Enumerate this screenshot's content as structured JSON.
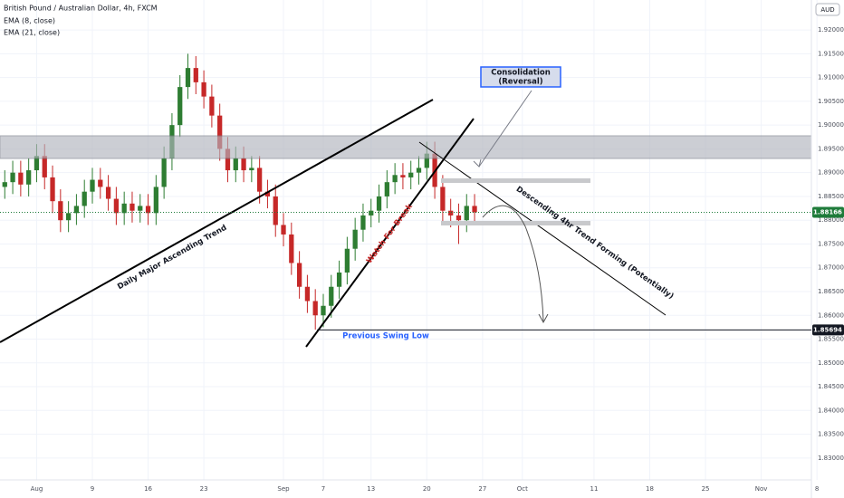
{
  "chart_data": {
    "type": "candlestick",
    "title": "British Pound / Australian Dollar, 4h, FXCM",
    "indicators": [
      "EMA (8, close)",
      "EMA (21, close)"
    ],
    "currency": "AUD",
    "up_color": "#2e7d32",
    "down_color": "#c62828",
    "x": [
      -2,
      -1,
      0,
      1,
      2,
      3,
      4,
      5,
      6,
      7,
      8,
      9,
      10,
      11,
      12,
      13,
      14,
      15,
      16,
      17,
      18,
      19,
      20,
      21,
      22,
      23,
      24,
      25,
      26,
      27,
      28,
      29,
      30,
      31,
      32,
      33,
      34,
      35,
      36,
      37,
      38,
      39,
      40,
      41,
      42,
      43,
      44,
      45,
      46,
      47,
      48,
      49,
      50,
      51,
      52,
      53,
      54,
      55,
      56,
      57
    ],
    "open": [
      1.887,
      1.888,
      1.89,
      1.8875,
      1.8905,
      1.8935,
      1.889,
      1.884,
      1.88,
      1.8815,
      1.883,
      1.886,
      1.8885,
      1.887,
      1.8845,
      1.8815,
      1.8835,
      1.882,
      1.883,
      1.8815,
      1.887,
      1.893,
      1.9,
      1.908,
      1.912,
      1.909,
      1.906,
      1.902,
      1.895,
      1.8905,
      1.893,
      1.8905,
      1.891,
      1.886,
      1.885,
      1.879,
      1.877,
      1.871,
      1.866,
      1.863,
      1.86,
      1.862,
      1.866,
      1.869,
      1.874,
      1.878,
      1.881,
      1.882,
      1.885,
      1.888,
      1.8895,
      1.889,
      1.89,
      1.891,
      1.894,
      1.887,
      1.882,
      1.881,
      1.88,
      1.883
    ],
    "high": [
      1.8905,
      1.8925,
      1.8925,
      1.893,
      1.896,
      1.896,
      1.8915,
      1.8865,
      1.884,
      1.8855,
      1.8885,
      1.891,
      1.891,
      1.8895,
      1.887,
      1.886,
      1.886,
      1.8855,
      1.8855,
      1.8895,
      1.8955,
      1.9025,
      1.9105,
      1.915,
      1.9145,
      1.9115,
      1.9085,
      1.9045,
      1.8975,
      1.8955,
      1.8955,
      1.8935,
      1.8935,
      1.8885,
      1.8875,
      1.8815,
      1.8795,
      1.8735,
      1.8685,
      1.8655,
      1.8645,
      1.8685,
      1.8715,
      1.8765,
      1.8805,
      1.8835,
      1.8845,
      1.8875,
      1.8905,
      1.892,
      1.892,
      1.8925,
      1.8935,
      1.8965,
      1.8965,
      1.8895,
      1.8845,
      1.8835,
      1.8855,
      1.8855
    ],
    "low": [
      1.8845,
      1.8855,
      1.885,
      1.885,
      1.888,
      1.8865,
      1.8815,
      1.8775,
      1.8775,
      1.879,
      1.8805,
      1.8835,
      1.8845,
      1.882,
      1.879,
      1.879,
      1.8795,
      1.8795,
      1.879,
      1.879,
      1.8845,
      1.8905,
      1.8975,
      1.9055,
      1.9065,
      1.9035,
      1.8995,
      1.8925,
      1.888,
      1.888,
      1.888,
      1.888,
      1.8835,
      1.8825,
      1.8765,
      1.8745,
      1.8685,
      1.8635,
      1.8605,
      1.857,
      1.8575,
      1.8595,
      1.8635,
      1.8665,
      1.8715,
      1.8755,
      1.8785,
      1.8795,
      1.8825,
      1.8855,
      1.8865,
      1.8865,
      1.8875,
      1.8885,
      1.8845,
      1.8795,
      1.8785,
      1.875,
      1.8775,
      1.8792
    ],
    "close": [
      1.888,
      1.89,
      1.8875,
      1.8905,
      1.8935,
      1.889,
      1.884,
      1.88,
      1.8815,
      1.883,
      1.886,
      1.8885,
      1.887,
      1.8845,
      1.8815,
      1.8835,
      1.882,
      1.883,
      1.8815,
      1.887,
      1.893,
      1.9,
      1.908,
      1.912,
      1.909,
      1.906,
      1.902,
      1.895,
      1.8905,
      1.893,
      1.8905,
      1.891,
      1.886,
      1.885,
      1.879,
      1.877,
      1.871,
      1.866,
      1.863,
      1.86,
      1.862,
      1.866,
      1.869,
      1.874,
      1.878,
      1.881,
      1.882,
      1.885,
      1.888,
      1.8895,
      1.889,
      1.89,
      1.891,
      1.894,
      1.887,
      1.882,
      1.881,
      1.88,
      1.883,
      1.88166
    ],
    "xlim": [
      -2.6,
      99.3
    ],
    "xticks": [
      {
        "value": 2,
        "label": "Aug"
      },
      9,
      16,
      23,
      {
        "value": 33,
        "label": "Sep"
      },
      {
        "value": 38,
        "label": "7"
      },
      {
        "value": 44,
        "label": "13"
      },
      {
        "value": 51,
        "label": "20"
      },
      {
        "value": 58,
        "label": "27"
      },
      {
        "value": 63,
        "label": "Oct"
      },
      {
        "value": 72,
        "label": "11"
      },
      {
        "value": 79,
        "label": "18"
      },
      {
        "value": 86,
        "label": "25"
      },
      {
        "value": 93,
        "label": "Nov"
      },
      {
        "value": 100,
        "label": "8"
      }
    ],
    "ylim": [
      1.8254,
      1.9263
    ],
    "yticks": [
      {
        "value": 1.92,
        "label": "1.92000"
      },
      {
        "value": 1.915,
        "label": "1.91500"
      },
      {
        "value": 1.91,
        "label": "1.91000"
      },
      {
        "value": 1.905,
        "label": "1.90500"
      },
      {
        "value": 1.9,
        "label": "1.90000"
      },
      {
        "value": 1.895,
        "label": "1.89500"
      },
      {
        "value": 1.89,
        "label": "1.89000"
      },
      {
        "value": 1.885,
        "label": "1.88500"
      },
      {
        "value": 1.88,
        "label": "1.88000"
      },
      {
        "value": 1.875,
        "label": "1.87500"
      },
      {
        "value": 1.87,
        "label": "1.87000"
      },
      {
        "value": 1.865,
        "label": "1.86500"
      },
      {
        "value": 1.86,
        "label": "1.86000"
      },
      {
        "value": 1.855,
        "label": "1.85500"
      },
      {
        "value": 1.85,
        "label": "1.85000"
      },
      {
        "value": 1.845,
        "label": "1.84500"
      },
      {
        "value": 1.84,
        "label": "1.84000"
      },
      {
        "value": 1.835,
        "label": "1.83500"
      },
      {
        "value": 1.83,
        "label": "1.83000"
      }
    ],
    "price_lines": [
      {
        "value": 1.88166,
        "label": "1.88166",
        "color": "#1e7b3a"
      },
      {
        "value": 1.85694,
        "label": "1.85694",
        "color": "#131722"
      }
    ],
    "annotations": {
      "ascending": "Daily Major Ascending Trend",
      "watch": "Watch For Break",
      "descending": "Descending 4hr Trend Forming (Potentially)",
      "swing_low": "Previous Swing Low",
      "consolidation": [
        "Consolidation",
        "(Reversal)"
      ]
    }
  }
}
